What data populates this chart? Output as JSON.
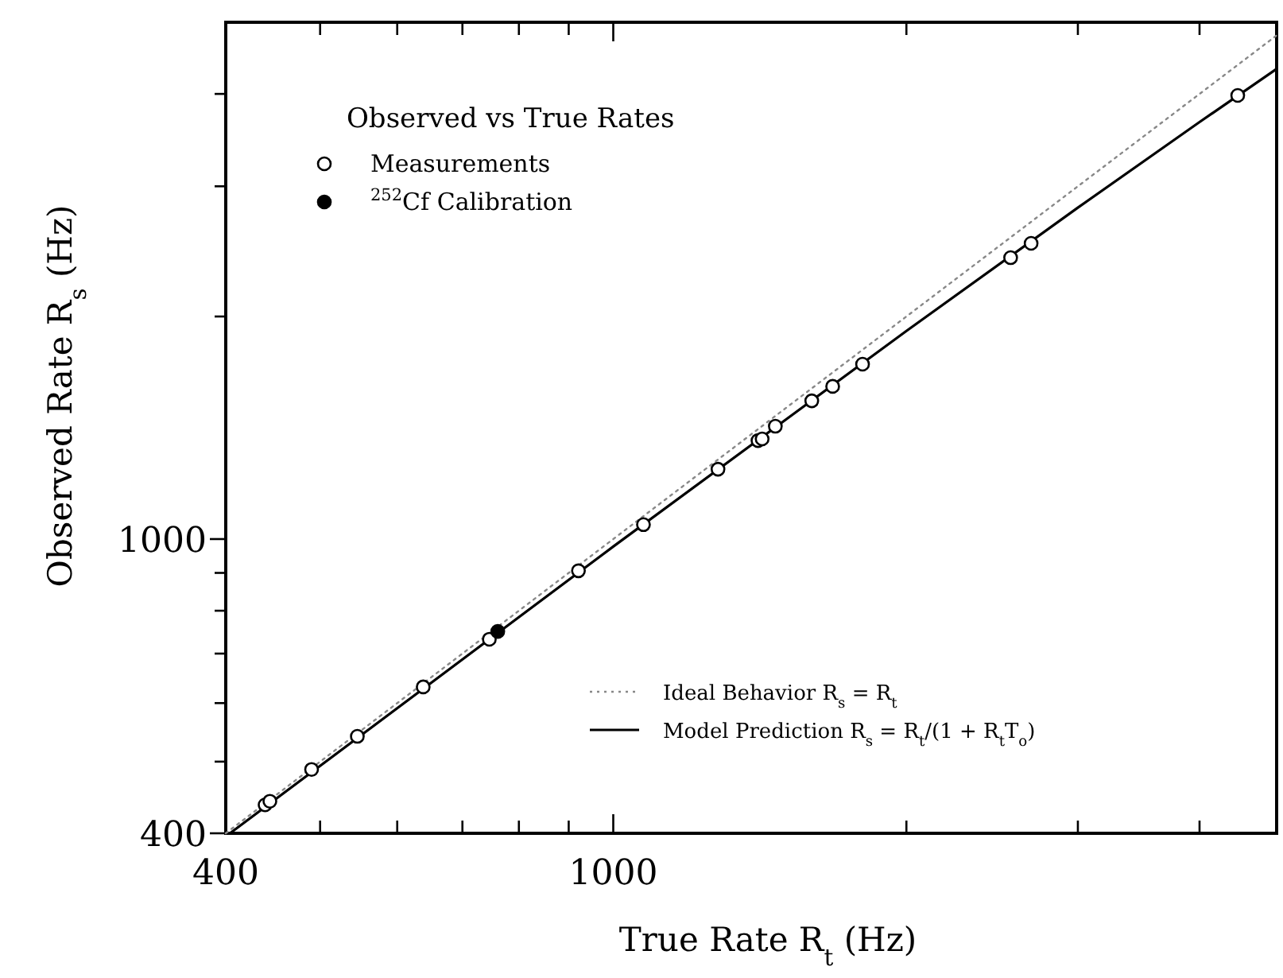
{
  "chart_data": {
    "type": "scatter",
    "xlabel": "True Rate R$_{t}$ (Hz)",
    "ylabel": "Observed Rate R$_{s}$ (Hz)",
    "legend_title": "Observed vs True Rates",
    "log": "xy",
    "xlim": [
      400,
      4800
    ],
    "ylim": [
      400,
      5000
    ],
    "xticks": [
      400,
      {
        "value": 500,
        "label": null
      },
      {
        "value": 600,
        "label": null
      },
      {
        "value": 700,
        "label": null
      },
      {
        "value": 800,
        "label": null
      },
      {
        "value": 900,
        "label": null
      },
      1000,
      {
        "value": 2000,
        "label": null
      },
      {
        "value": 3000,
        "label": null
      },
      {
        "value": 4000,
        "label": null
      }
    ],
    "yticks": [
      400,
      {
        "value": 500,
        "label": null
      },
      {
        "value": 600,
        "label": null
      },
      {
        "value": 700,
        "label": null
      },
      {
        "value": 800,
        "label": null
      },
      {
        "value": 900,
        "label": null
      },
      1000,
      {
        "value": 2000,
        "label": null
      },
      {
        "value": 3000,
        "label": null
      },
      {
        "value": 4000,
        "label": null
      }
    ],
    "grid": false,
    "legend": "left",
    "series": [
      {
        "name": "Ideal Behavior R$_{s}$ = R$_{t}$",
        "type": "line",
        "line_style": "dotted",
        "color": "#888888",
        "x": [
          400,
          4800
        ],
        "values": [
          400,
          4800
        ]
      },
      {
        "name": "Model Prediction R$_{s}$ = R$_{t}$/(1 + R$_{t}$T$_{o}$)",
        "type": "line",
        "line_style": "solid",
        "color": "#000000",
        "x": [
          404,
          1000,
          2000,
          3000,
          4000,
          4800
        ],
        "values": [
          400,
          977,
          1912,
          2807,
          3664,
          4325
        ]
      },
      {
        "name": "Measurements",
        "marker": "circle",
        "color": "#ffffff",
        "x": [
          439,
          444,
          490,
          546,
          638,
          746,
          921,
          1074,
          1281,
          1408,
          1422,
          1467,
          1599,
          1680,
          1803,
          2559,
          2686,
          4378
        ],
        "values": [
          437,
          442,
          488,
          541,
          631,
          732,
          906,
          1046,
          1243,
          1359,
          1366,
          1421,
          1538,
          1609,
          1724,
          2402,
          2512,
          3981
        ]
      },
      {
        "name": "$^{252}$Cf Calibration",
        "marker": "circle",
        "color": "#000000",
        "x": [
          761
        ],
        "values": [
          750
        ]
      }
    ]
  }
}
